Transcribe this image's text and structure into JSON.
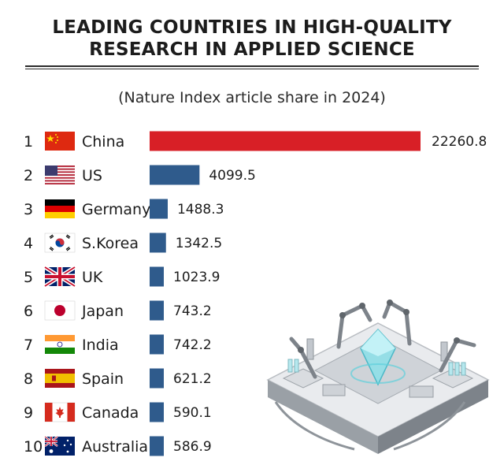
{
  "header": {
    "title_line1": "LEADING COUNTRIES IN HIGH-QUALITY",
    "title_line2": "RESEARCH IN APPLIED SCIENCE",
    "subtitle": "(Nature Index article share in 2024)"
  },
  "colors": {
    "top_bar": "#d81f26",
    "bar": "#2f5b8c"
  },
  "illustration": "isometric-robotic-lab",
  "chart_data": {
    "type": "bar",
    "orientation": "horizontal",
    "title": "LEADING COUNTRIES IN HIGH-QUALITY RESEARCH IN APPLIED SCIENCE",
    "subtitle": "(Nature Index article share in 2024)",
    "ranks": [
      1,
      2,
      3,
      4,
      5,
      6,
      7,
      8,
      9,
      10
    ],
    "categories": [
      "China",
      "US",
      "Germany",
      "S.Korea",
      "UK",
      "Japan",
      "India",
      "Spain",
      "Canada",
      "Australia"
    ],
    "flags": [
      "china-flag-icon",
      "us-flag-icon",
      "germany-flag-icon",
      "south-korea-flag-icon",
      "uk-flag-icon",
      "japan-flag-icon",
      "india-flag-icon",
      "spain-flag-icon",
      "canada-flag-icon",
      "australia-flag-icon"
    ],
    "values": [
      22260.8,
      4099.5,
      1488.3,
      1342.5,
      1023.9,
      743.2,
      742.2,
      621.2,
      590.1,
      586.9
    ],
    "value_labels": [
      "22260.8",
      "4099.5",
      "1488.3",
      "1342.5",
      "1023.9",
      "743.2",
      "742.2",
      "621.2",
      "590.1",
      "586.9"
    ],
    "xlabel": "",
    "ylabel": "",
    "xlim": [
      0,
      22260.8
    ],
    "grid": false,
    "legend": "none"
  }
}
